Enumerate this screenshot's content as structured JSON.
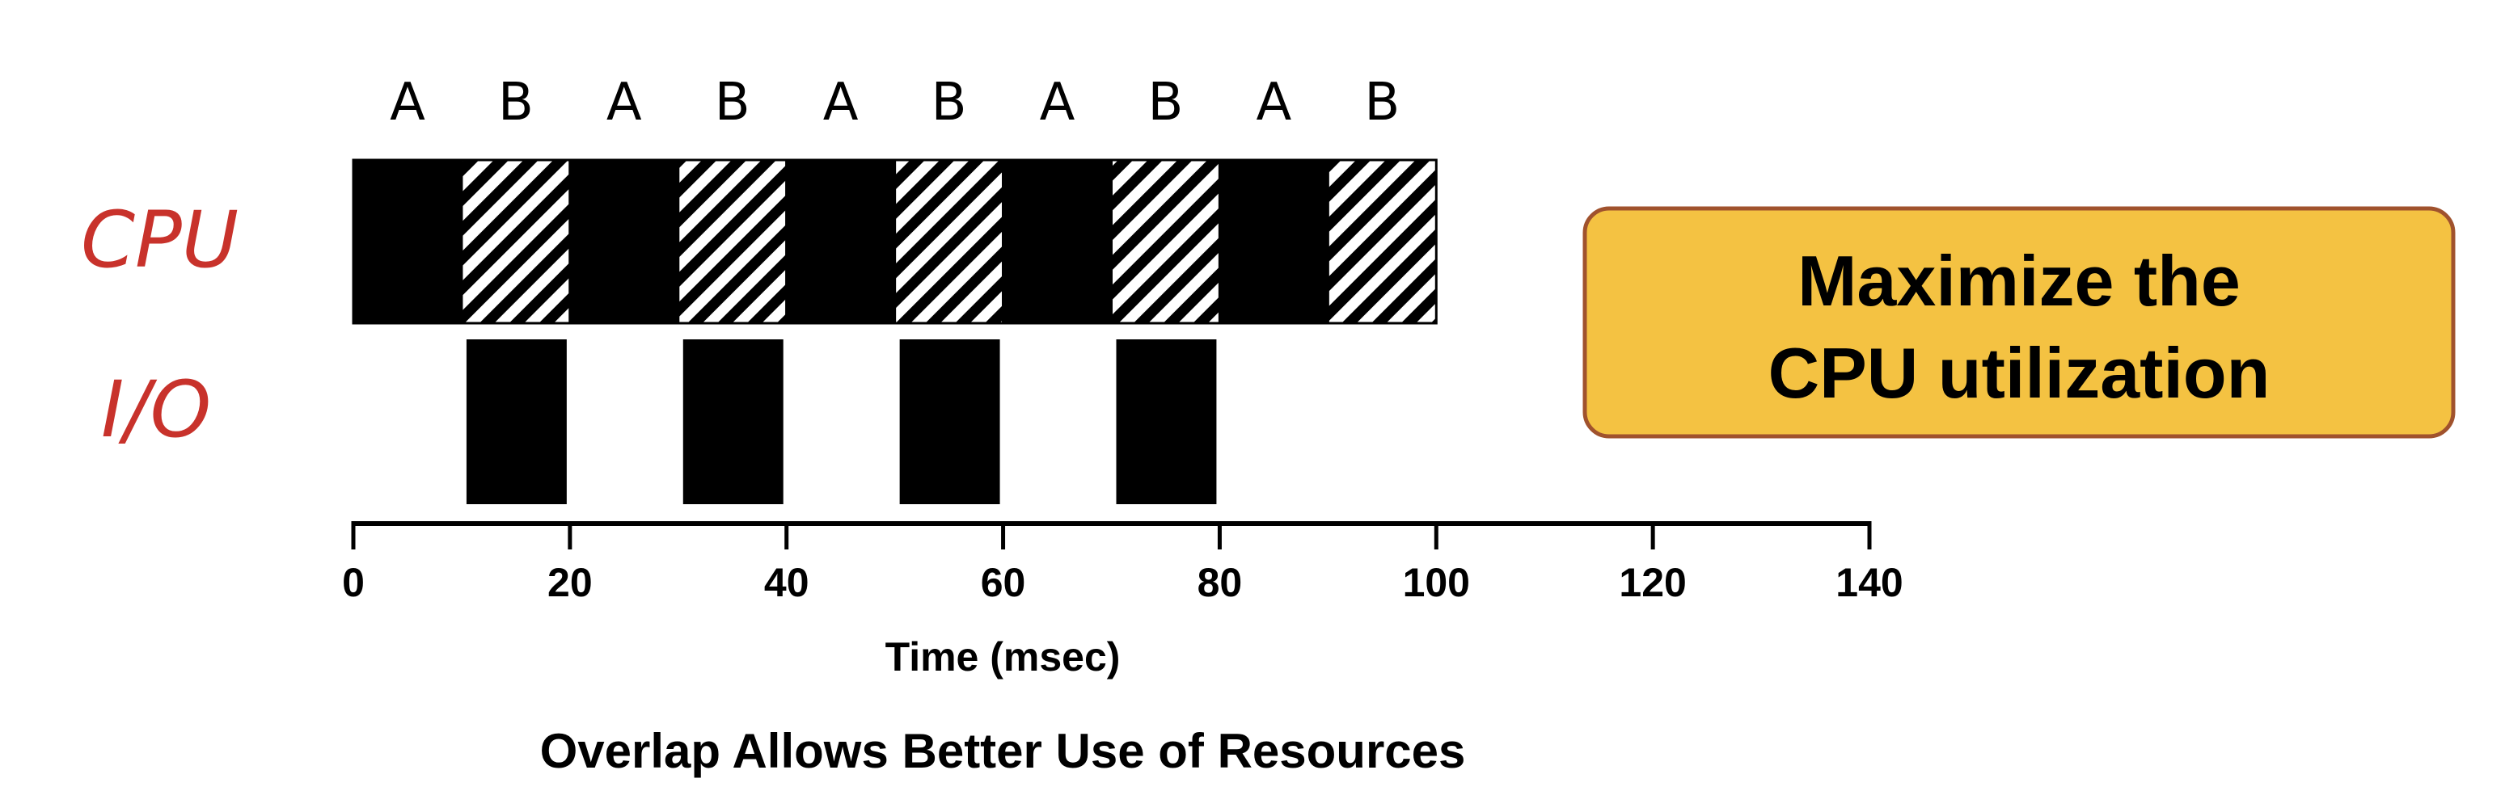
{
  "rows": {
    "cpu_label": "CPU",
    "io_label": "I/O"
  },
  "cpu_slots": [
    {
      "label": "A",
      "start": 0,
      "end": 10,
      "fill": "solid"
    },
    {
      "label": "B",
      "start": 10,
      "end": 20,
      "fill": "hatched"
    },
    {
      "label": "A",
      "start": 20,
      "end": 30,
      "fill": "solid"
    },
    {
      "label": "B",
      "start": 30,
      "end": 40,
      "fill": "hatched"
    },
    {
      "label": "A",
      "start": 40,
      "end": 50,
      "fill": "solid"
    },
    {
      "label": "B",
      "start": 50,
      "end": 60,
      "fill": "hatched"
    },
    {
      "label": "A",
      "start": 60,
      "end": 70,
      "fill": "solid"
    },
    {
      "label": "B",
      "start": 70,
      "end": 80,
      "fill": "hatched"
    },
    {
      "label": "A",
      "start": 80,
      "end": 90,
      "fill": "solid"
    },
    {
      "label": "B",
      "start": 90,
      "end": 100,
      "fill": "hatched"
    }
  ],
  "io_slots": [
    {
      "start": 10,
      "end": 20
    },
    {
      "start": 30,
      "end": 40
    },
    {
      "start": 50,
      "end": 60
    },
    {
      "start": 70,
      "end": 80
    }
  ],
  "axis": {
    "min": 0,
    "max": 140,
    "ticks": [
      "0",
      "20",
      "40",
      "60",
      "80",
      "100",
      "120",
      "140"
    ],
    "title": "Time (msec)"
  },
  "caption": "Overlap Allows Better Use of Resources",
  "callout": {
    "line1": "Maximize the",
    "line2": "CPU utilization"
  },
  "colors": {
    "bar": "#000000",
    "label_red": "#c8322b",
    "callout_fill": "#f4c242",
    "callout_border": "#a0522d"
  }
}
